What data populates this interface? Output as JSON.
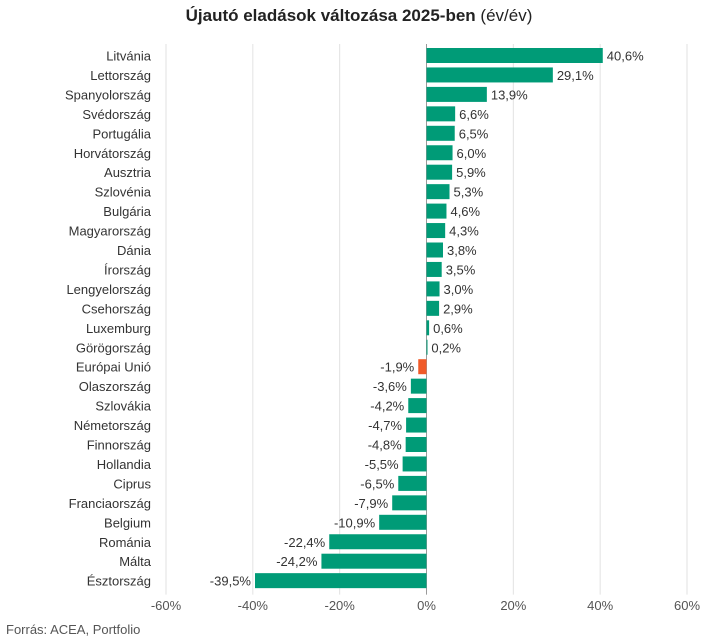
{
  "title": {
    "main": "Újautó eladások változása 2025-ben",
    "sub": "(év/év)"
  },
  "source": "Forrás: ACEA, Portfolio",
  "colors": {
    "bar": "#009b77",
    "highlight": "#f05a28",
    "grid": "#e2e2e2",
    "text": "#333333"
  },
  "chart_data": {
    "type": "bar",
    "orientation": "horizontal",
    "categories": [
      "Litvánia",
      "Lettország",
      "Spanyolország",
      "Svédország",
      "Portugália",
      "Horvátország",
      "Ausztria",
      "Szlovénia",
      "Bulgária",
      "Magyarország",
      "Dánia",
      "Írország",
      "Lengyelország",
      "Csehország",
      "Luxemburg",
      "Görögország",
      "Európai Unió",
      "Olaszország",
      "Szlovákia",
      "Németország",
      "Finnország",
      "Hollandia",
      "Ciprus",
      "Franciaország",
      "Belgium",
      "Románia",
      "Málta",
      "Észtország"
    ],
    "values": [
      40.6,
      29.1,
      13.9,
      6.6,
      6.5,
      6.0,
      5.9,
      5.3,
      4.6,
      4.3,
      3.8,
      3.5,
      3.0,
      2.9,
      0.6,
      0.2,
      -1.9,
      -3.6,
      -4.2,
      -4.7,
      -4.8,
      -5.5,
      -6.5,
      -7.9,
      -10.9,
      -22.4,
      -24.2,
      -39.5
    ],
    "value_labels": [
      "40,6%",
      "29,1%",
      "13,9%",
      "6,6%",
      "6,5%",
      "6,0%",
      "5,9%",
      "5,3%",
      "4,6%",
      "4,3%",
      "3,8%",
      "3,5%",
      "3,0%",
      "2,9%",
      "0,6%",
      "0,2%",
      "-1,9%",
      "-3,6%",
      "-4,2%",
      "-4,7%",
      "-4,8%",
      "-5,5%",
      "-6,5%",
      "-7,9%",
      "-10,9%",
      "-22,4%",
      "-24,2%",
      "-39,5%"
    ],
    "highlight_category": "Európai Unió",
    "xlim": [
      -60,
      60
    ],
    "xticks": [
      -60,
      -40,
      -20,
      0,
      20,
      40,
      60
    ],
    "xtick_labels": [
      "-60%",
      "-40%",
      "-20%",
      "0%",
      "20%",
      "40%",
      "60%"
    ],
    "grid": true,
    "legend": "none"
  }
}
